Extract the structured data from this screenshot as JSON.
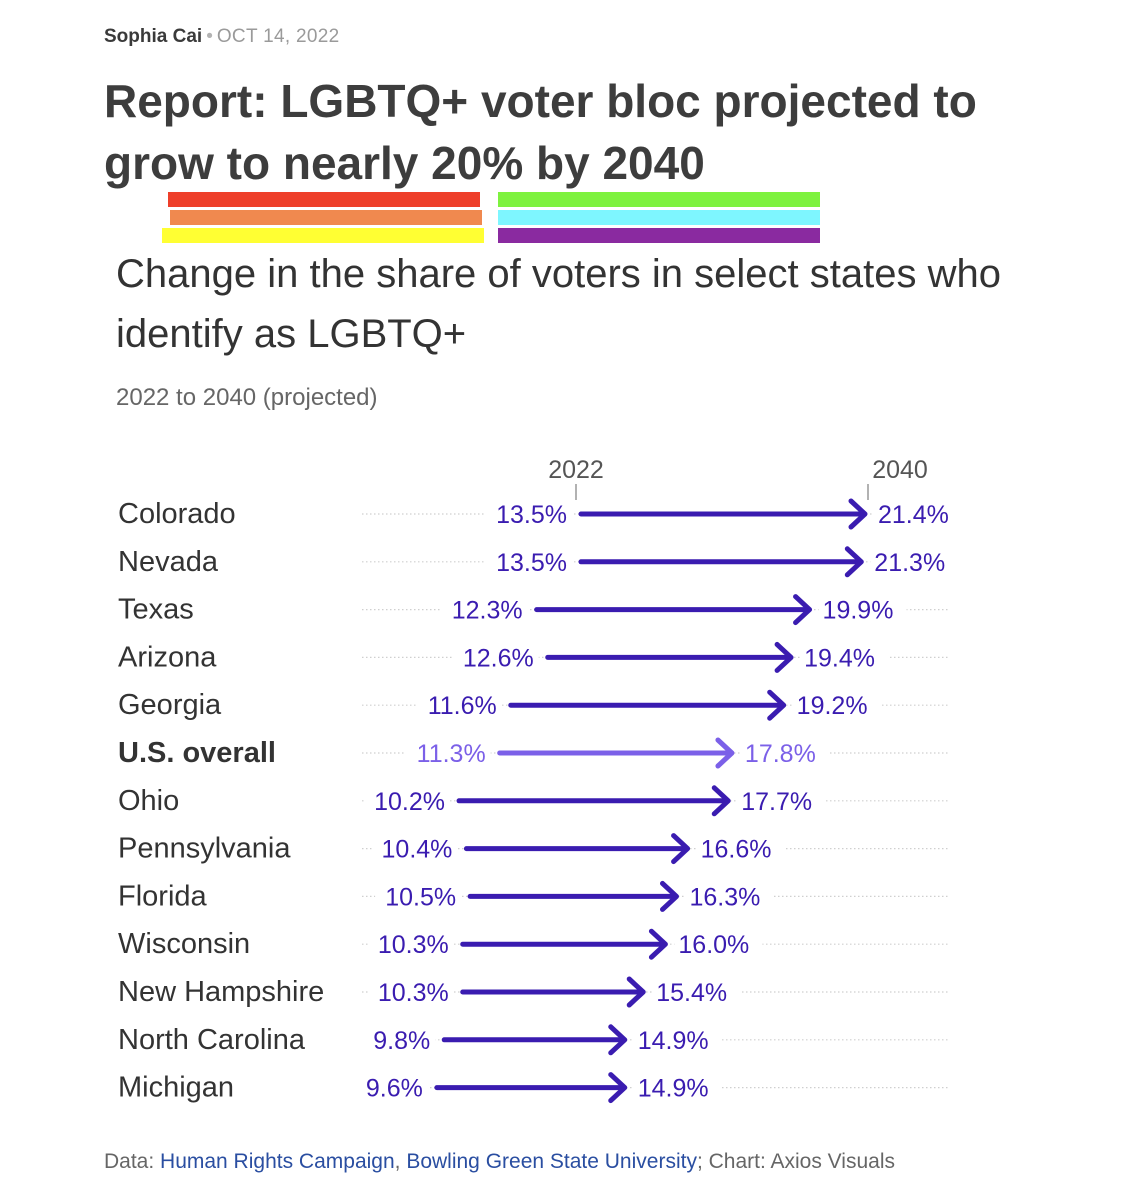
{
  "byline": {
    "author": "Sophia Cai",
    "separator": "•",
    "date": "OCT 14, 2022"
  },
  "headline": "Report: LGBTQ+ voter bloc projected to grow to nearly 20% by 2040",
  "colors": {
    "arrow": "#3a1cb0",
    "arrow_highlight": "#7b60e8",
    "text": "#333333",
    "link": "#2a4ea1",
    "stripes": [
      "#ee3f2a",
      "#f0894f",
      "#ffff33",
      "#7ef23f",
      "#7ef6ff",
      "#8a2aa0"
    ]
  },
  "chart_data": {
    "type": "arrow",
    "title": "Change in the share of voters in select states who identify as LGBTQ+",
    "subtitle": "2022 to 2040 (projected)",
    "start_label": "2022",
    "end_label": "2040",
    "unit": "%",
    "rows": [
      {
        "label": "Colorado",
        "start": 13.5,
        "end": 21.4,
        "start_text": "13.5%",
        "end_text": "21.4%",
        "highlight": false
      },
      {
        "label": "Nevada",
        "start": 13.5,
        "end": 21.3,
        "start_text": "13.5%",
        "end_text": "21.3%",
        "highlight": false
      },
      {
        "label": "Texas",
        "start": 12.3,
        "end": 19.9,
        "start_text": "12.3%",
        "end_text": "19.9%",
        "highlight": false
      },
      {
        "label": "Arizona",
        "start": 12.6,
        "end": 19.4,
        "start_text": "12.6%",
        "end_text": "19.4%",
        "highlight": false
      },
      {
        "label": "Georgia",
        "start": 11.6,
        "end": 19.2,
        "start_text": "11.6%",
        "end_text": "19.2%",
        "highlight": false
      },
      {
        "label": "U.S. overall",
        "start": 11.3,
        "end": 17.8,
        "start_text": "11.3%",
        "end_text": "17.8%",
        "highlight": true
      },
      {
        "label": "Ohio",
        "start": 10.2,
        "end": 17.7,
        "start_text": "10.2%",
        "end_text": "17.7%",
        "highlight": false
      },
      {
        "label": "Pennsylvania",
        "start": 10.4,
        "end": 16.6,
        "start_text": "10.4%",
        "end_text": "16.6%",
        "highlight": false
      },
      {
        "label": "Florida",
        "start": 10.5,
        "end": 16.3,
        "start_text": "10.5%",
        "end_text": "16.3%",
        "highlight": false
      },
      {
        "label": "Wisconsin",
        "start": 10.3,
        "end": 16.0,
        "start_text": "10.3%",
        "end_text": "16.0%",
        "highlight": false
      },
      {
        "label": "New Hampshire",
        "start": 10.3,
        "end": 15.4,
        "start_text": "10.3%",
        "end_text": "15.4%",
        "highlight": false
      },
      {
        "label": "North Carolina",
        "start": 9.8,
        "end": 14.9,
        "start_text": "9.8%",
        "end_text": "14.9%",
        "highlight": false
      },
      {
        "label": "Michigan",
        "start": 9.6,
        "end": 14.9,
        "start_text": "9.6%",
        "end_text": "14.9%",
        "highlight": false
      }
    ]
  },
  "footer": {
    "prefix": "Data: ",
    "source1": "Human Rights Campaign",
    "sep": ", ",
    "source2": "Bowling Green State University",
    "suffix": "; Chart: Axios Visuals"
  }
}
